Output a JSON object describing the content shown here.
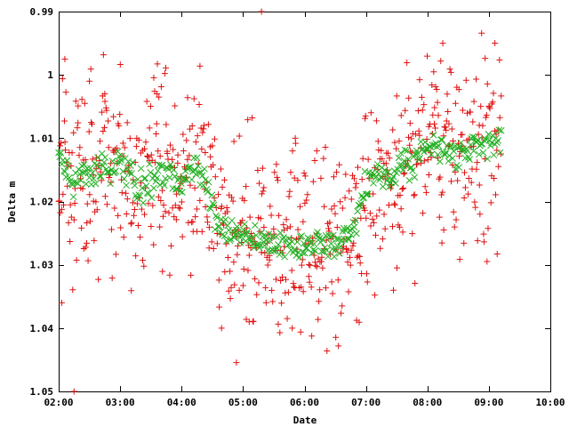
{
  "chart_data": {
    "type": "scatter",
    "xlabel": "Date",
    "ylabel": "Delta m",
    "x_ticks": [
      {
        "value": 2,
        "label": "02:00"
      },
      {
        "value": 3,
        "label": "03:00"
      },
      {
        "value": 4,
        "label": "04:00"
      },
      {
        "value": 5,
        "label": "05:00"
      },
      {
        "value": 6,
        "label": "06:00"
      },
      {
        "value": 7,
        "label": "07:00"
      },
      {
        "value": 8,
        "label": "08:00"
      },
      {
        "value": 9,
        "label": "09:00"
      },
      {
        "value": 10,
        "label": "10:00"
      }
    ],
    "y_ticks": [
      {
        "value": 0.99,
        "label": "0.99"
      },
      {
        "value": 1.0,
        "label": "1"
      },
      {
        "value": 1.01,
        "label": "1.01"
      },
      {
        "value": 1.02,
        "label": "1.02"
      },
      {
        "value": 1.03,
        "label": "1.03"
      },
      {
        "value": 1.04,
        "label": "1.04"
      },
      {
        "value": 1.05,
        "label": "1.05"
      }
    ],
    "xlim": [
      2,
      10
    ],
    "ylim": [
      0.99,
      1.05
    ],
    "y_inverted": true,
    "grid": false,
    "legend": "none",
    "colors": {
      "raw": "#e01010",
      "binned": "#22b022"
    },
    "trend": [
      [
        2.0,
        1.012
      ],
      [
        2.1,
        1.014
      ],
      [
        2.2,
        1.017
      ],
      [
        2.3,
        1.016
      ],
      [
        2.5,
        1.016
      ],
      [
        2.65,
        1.015
      ],
      [
        2.75,
        1.014
      ],
      [
        2.85,
        1.016
      ],
      [
        3.0,
        1.014
      ],
      [
        3.15,
        1.016
      ],
      [
        3.3,
        1.018
      ],
      [
        3.5,
        1.017
      ],
      [
        3.65,
        1.015
      ],
      [
        3.8,
        1.016
      ],
      [
        4.0,
        1.017
      ],
      [
        4.2,
        1.015
      ],
      [
        4.35,
        1.016
      ],
      [
        4.5,
        1.02
      ],
      [
        4.6,
        1.024
      ],
      [
        4.8,
        1.025
      ],
      [
        5.0,
        1.026
      ],
      [
        5.2,
        1.026
      ],
      [
        5.4,
        1.027
      ],
      [
        5.6,
        1.027
      ],
      [
        5.8,
        1.027
      ],
      [
        6.0,
        1.027
      ],
      [
        6.2,
        1.026
      ],
      [
        6.4,
        1.027
      ],
      [
        6.55,
        1.027
      ],
      [
        6.7,
        1.025
      ],
      [
        6.85,
        1.023
      ],
      [
        7.0,
        1.017
      ],
      [
        7.2,
        1.016
      ],
      [
        7.4,
        1.016
      ],
      [
        7.6,
        1.013
      ],
      [
        7.75,
        1.015
      ],
      [
        7.9,
        1.012
      ],
      [
        8.05,
        1.011
      ],
      [
        8.25,
        1.012
      ],
      [
        8.45,
        1.013
      ],
      [
        8.6,
        1.012
      ],
      [
        8.8,
        1.011
      ],
      [
        9.0,
        1.011
      ],
      [
        9.2,
        1.009
      ]
    ],
    "x_data_range": [
      2.0,
      9.2
    ],
    "raw_scatter_sd": 0.0075,
    "binned_scatter_sd": 0.0012,
    "raw_count": 720,
    "binned_count": 420,
    "outliers": [
      [
        5.3,
        0.99
      ],
      [
        8.25,
        0.995
      ],
      [
        2.1,
        0.9975
      ],
      [
        2.25,
        1.05
      ],
      [
        4.65,
        1.04
      ],
      [
        5.1,
        1.039
      ],
      [
        5.8,
        1.04
      ],
      [
        2.5,
        1.001
      ],
      [
        2.75,
        1.003
      ],
      [
        3.6,
        1.003
      ],
      [
        5.85,
        1.01
      ],
      [
        2.05,
        1.036
      ],
      [
        6.2,
        1.012
      ]
    ]
  }
}
